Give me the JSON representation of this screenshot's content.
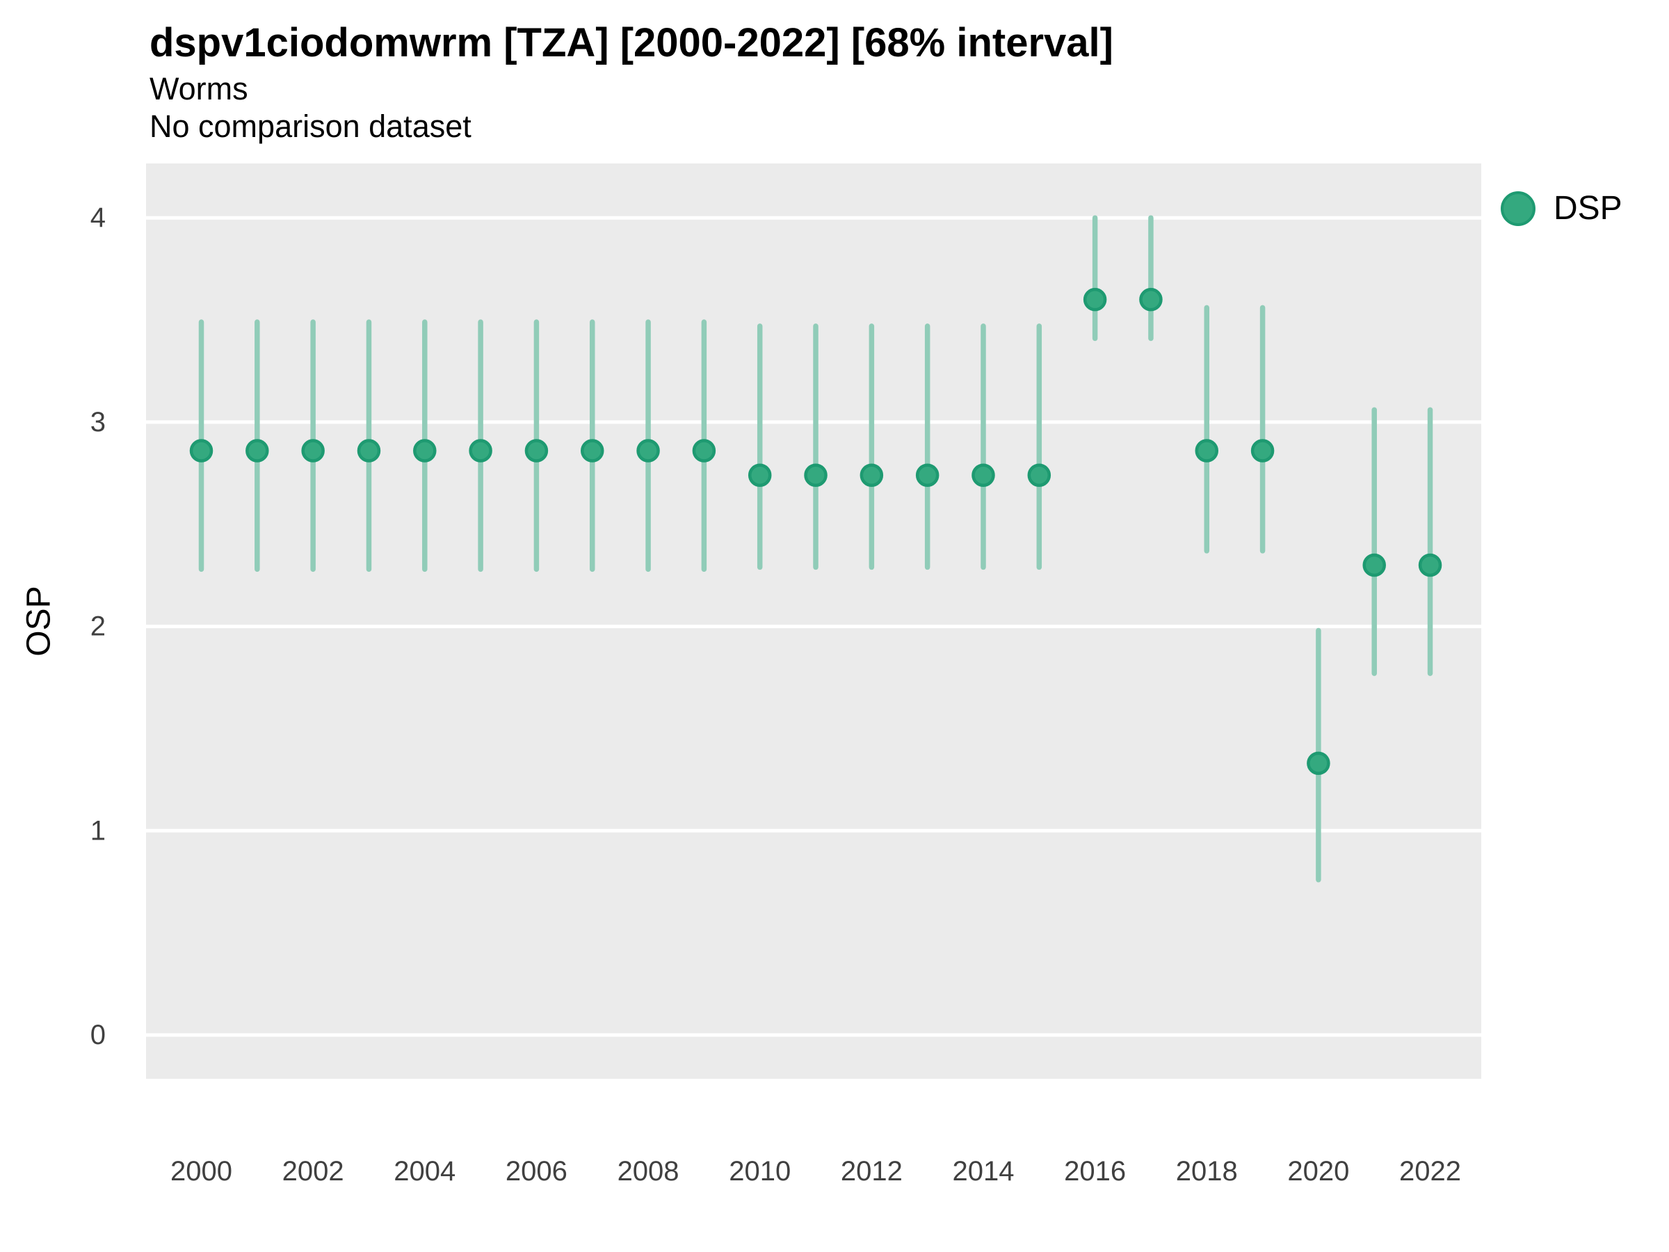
{
  "header": {
    "title": "dspv1ciodomwrm [TZA] [2000-2022] [68% interval]",
    "subtitle": "Worms",
    "note": "No comparison dataset"
  },
  "legend": {
    "label": "DSP"
  },
  "colors": {
    "point_fill": "#34a97f",
    "point_stroke": "#1e9a71",
    "interval": "#90ccb8",
    "panel_bg": "#ebebeb",
    "gridline": "#ffffff",
    "tick_text": "#404040",
    "title_text": "#000000"
  },
  "chart_data": {
    "type": "scatter",
    "subtype": "pointrange",
    "title": "dspv1ciodomwrm [TZA] [2000-2022] [68% interval]",
    "subtitle": "Worms",
    "annotation": "No comparison dataset",
    "xlabel": "",
    "ylabel": "OSP",
    "legend_entries": [
      "DSP"
    ],
    "legend_position": "right",
    "grid": "major-horizontal-white-on-grey",
    "x_ticks": [
      2000,
      2002,
      2004,
      2006,
      2008,
      2010,
      2012,
      2014,
      2016,
      2018,
      2020,
      2022
    ],
    "y_ticks": [
      0,
      1,
      2,
      3,
      4
    ],
    "xlim": [
      1999.0,
      2022.9
    ],
    "ylim": [
      -0.21,
      4.27
    ],
    "interval_level": "68%",
    "series": [
      {
        "name": "DSP",
        "points": [
          {
            "year": 2000,
            "mid": 2.86,
            "lo": 2.28,
            "hi": 3.49
          },
          {
            "year": 2001,
            "mid": 2.86,
            "lo": 2.28,
            "hi": 3.49
          },
          {
            "year": 2002,
            "mid": 2.86,
            "lo": 2.28,
            "hi": 3.49
          },
          {
            "year": 2003,
            "mid": 2.86,
            "lo": 2.28,
            "hi": 3.49
          },
          {
            "year": 2004,
            "mid": 2.86,
            "lo": 2.28,
            "hi": 3.49
          },
          {
            "year": 2005,
            "mid": 2.86,
            "lo": 2.28,
            "hi": 3.49
          },
          {
            "year": 2006,
            "mid": 2.86,
            "lo": 2.28,
            "hi": 3.49
          },
          {
            "year": 2007,
            "mid": 2.86,
            "lo": 2.28,
            "hi": 3.49
          },
          {
            "year": 2008,
            "mid": 2.86,
            "lo": 2.28,
            "hi": 3.49
          },
          {
            "year": 2009,
            "mid": 2.86,
            "lo": 2.28,
            "hi": 3.49
          },
          {
            "year": 2010,
            "mid": 2.74,
            "lo": 2.29,
            "hi": 3.47
          },
          {
            "year": 2011,
            "mid": 2.74,
            "lo": 2.29,
            "hi": 3.47
          },
          {
            "year": 2012,
            "mid": 2.74,
            "lo": 2.29,
            "hi": 3.47
          },
          {
            "year": 2013,
            "mid": 2.74,
            "lo": 2.29,
            "hi": 3.47
          },
          {
            "year": 2014,
            "mid": 2.74,
            "lo": 2.29,
            "hi": 3.47
          },
          {
            "year": 2015,
            "mid": 2.74,
            "lo": 2.29,
            "hi": 3.47
          },
          {
            "year": 2016,
            "mid": 3.6,
            "lo": 3.41,
            "hi": 4.0
          },
          {
            "year": 2017,
            "mid": 3.6,
            "lo": 3.41,
            "hi": 4.0
          },
          {
            "year": 2018,
            "mid": 2.86,
            "lo": 2.37,
            "hi": 3.56
          },
          {
            "year": 2019,
            "mid": 2.86,
            "lo": 2.37,
            "hi": 3.56
          },
          {
            "year": 2020,
            "mid": 1.33,
            "lo": 0.76,
            "hi": 1.98
          },
          {
            "year": 2021,
            "mid": 2.3,
            "lo": 1.77,
            "hi": 3.06
          },
          {
            "year": 2022,
            "mid": 2.3,
            "lo": 1.77,
            "hi": 3.06
          }
        ]
      }
    ]
  }
}
